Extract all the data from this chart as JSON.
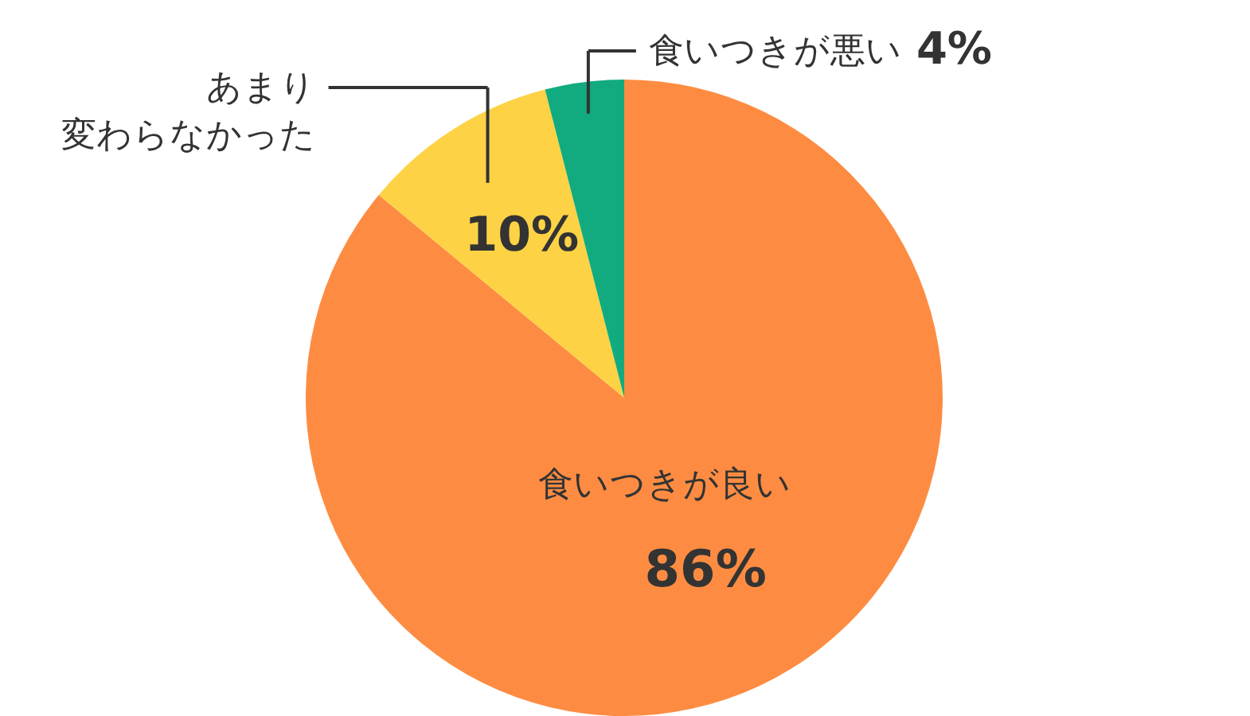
{
  "chart_data": {
    "type": "pie",
    "categories": [
      "食いつきが良い",
      "あまり変わらなかった",
      "食いつきが悪い"
    ],
    "values": [
      86,
      10,
      4
    ],
    "colors": [
      "#fd8c42",
      "#fdd245",
      "#12ab7f"
    ],
    "value_labels": [
      "86%",
      "10%",
      "4%"
    ]
  }
}
